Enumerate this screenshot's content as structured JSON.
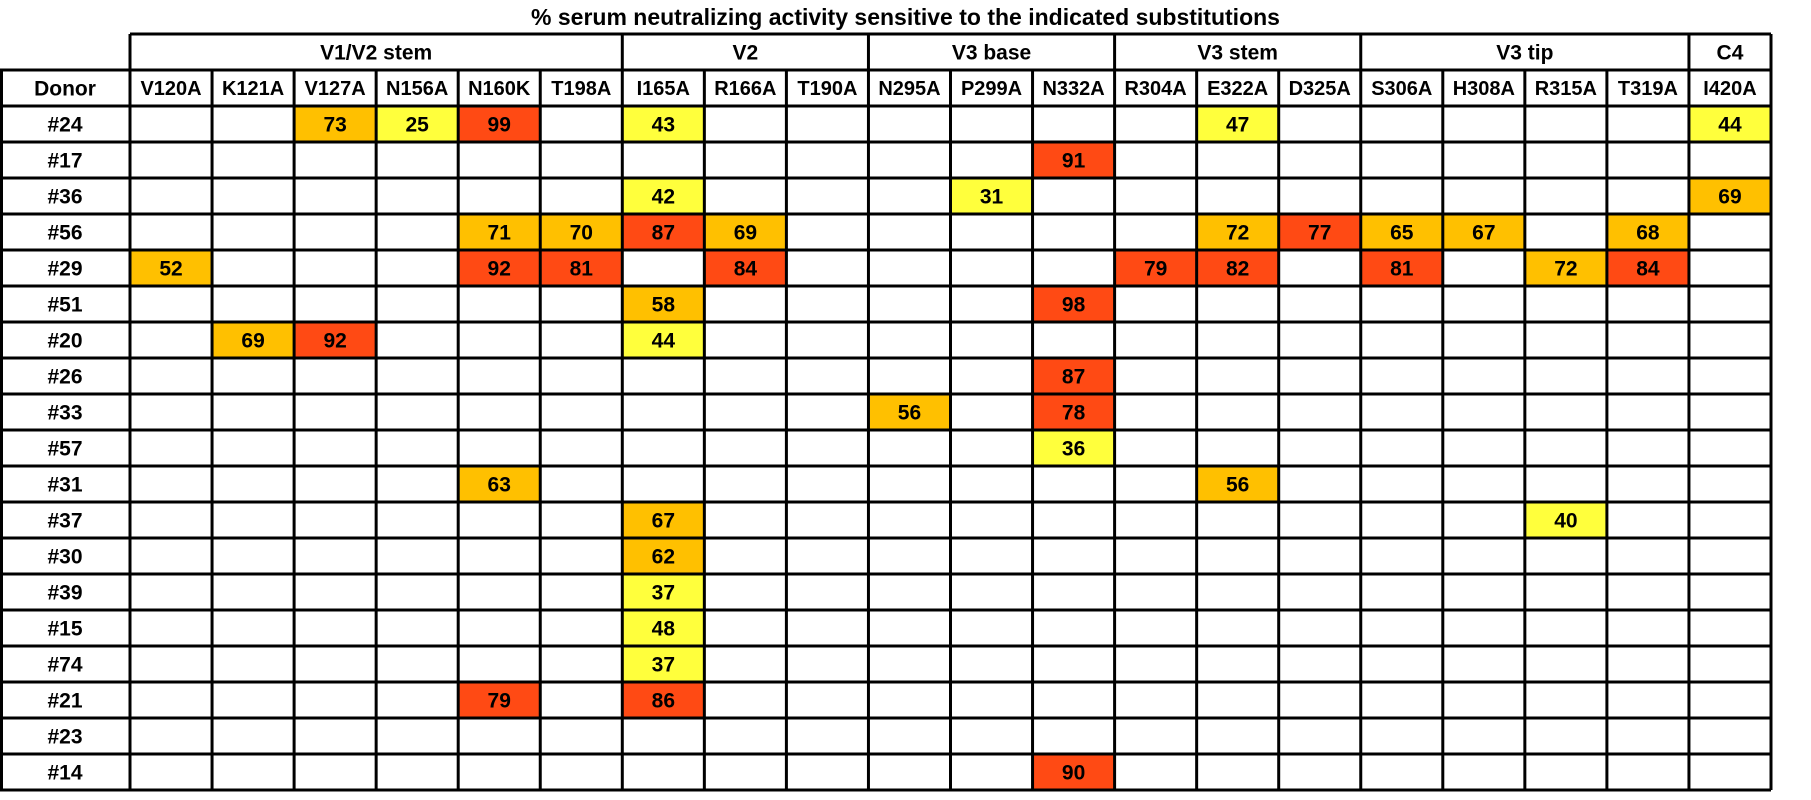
{
  "chart_data": {
    "type": "heatmap",
    "title": "% serum neutralizing activity sensitive to the indicated substitutions",
    "row_header": "Donor",
    "groups": [
      {
        "label": "V1/V2 stem",
        "span": 6
      },
      {
        "label": "V2",
        "span": 3
      },
      {
        "label": "V3 base",
        "span": 3
      },
      {
        "label": "V3 stem",
        "span": 3
      },
      {
        "label": "V3 tip",
        "span": 4
      },
      {
        "label": "C4",
        "span": 1
      }
    ],
    "columns": [
      "V120A",
      "K121A",
      "V127A",
      "N156A",
      "N160K",
      "T198A",
      "I165A",
      "R166A",
      "T190A",
      "N295A",
      "P299A",
      "N332A",
      "R304A",
      "E322A",
      "D325A",
      "S306A",
      "H308A",
      "R315A",
      "T319A",
      "I420A"
    ],
    "rows": [
      "#24",
      "#17",
      "#36",
      "#56",
      "#29",
      "#51",
      "#20",
      "#26",
      "#33",
      "#57",
      "#31",
      "#37",
      "#30",
      "#39",
      "#15",
      "#74",
      "#21",
      "#23",
      "#14"
    ],
    "values": [
      [
        null,
        null,
        73,
        25,
        99,
        null,
        43,
        null,
        null,
        null,
        null,
        null,
        null,
        47,
        null,
        null,
        null,
        null,
        null,
        44
      ],
      [
        null,
        null,
        null,
        null,
        null,
        null,
        null,
        null,
        null,
        null,
        null,
        91,
        null,
        null,
        null,
        null,
        null,
        null,
        null,
        null
      ],
      [
        null,
        null,
        null,
        null,
        null,
        null,
        42,
        null,
        null,
        null,
        31,
        null,
        null,
        null,
        null,
        null,
        null,
        null,
        null,
        69
      ],
      [
        null,
        null,
        null,
        null,
        71,
        70,
        87,
        69,
        null,
        null,
        null,
        null,
        null,
        72,
        77,
        65,
        67,
        null,
        68,
        null
      ],
      [
        52,
        null,
        null,
        null,
        92,
        81,
        null,
        84,
        null,
        null,
        null,
        null,
        79,
        82,
        null,
        81,
        null,
        72,
        84,
        null
      ],
      [
        null,
        null,
        null,
        null,
        null,
        null,
        58,
        null,
        null,
        null,
        null,
        98,
        null,
        null,
        null,
        null,
        null,
        null,
        null,
        null
      ],
      [
        null,
        69,
        92,
        null,
        null,
        null,
        44,
        null,
        null,
        null,
        null,
        null,
        null,
        null,
        null,
        null,
        null,
        null,
        null,
        null
      ],
      [
        null,
        null,
        null,
        null,
        null,
        null,
        null,
        null,
        null,
        null,
        null,
        87,
        null,
        null,
        null,
        null,
        null,
        null,
        null,
        null
      ],
      [
        null,
        null,
        null,
        null,
        null,
        null,
        null,
        null,
        null,
        56,
        null,
        78,
        null,
        null,
        null,
        null,
        null,
        null,
        null,
        null
      ],
      [
        null,
        null,
        null,
        null,
        null,
        null,
        null,
        null,
        null,
        null,
        null,
        36,
        null,
        null,
        null,
        null,
        null,
        null,
        null,
        null
      ],
      [
        null,
        null,
        null,
        null,
        63,
        null,
        null,
        null,
        null,
        null,
        null,
        null,
        null,
        56,
        null,
        null,
        null,
        null,
        null,
        null
      ],
      [
        null,
        null,
        null,
        null,
        null,
        null,
        67,
        null,
        null,
        null,
        null,
        null,
        null,
        null,
        null,
        null,
        null,
        40,
        null,
        null
      ],
      [
        null,
        null,
        null,
        null,
        null,
        null,
        62,
        null,
        null,
        null,
        null,
        null,
        null,
        null,
        null,
        null,
        null,
        null,
        null,
        null
      ],
      [
        null,
        null,
        null,
        null,
        null,
        null,
        37,
        null,
        null,
        null,
        null,
        null,
        null,
        null,
        null,
        null,
        null,
        null,
        null,
        null
      ],
      [
        null,
        null,
        null,
        null,
        null,
        null,
        48,
        null,
        null,
        null,
        null,
        null,
        null,
        null,
        null,
        null,
        null,
        null,
        null,
        null
      ],
      [
        null,
        null,
        null,
        null,
        null,
        null,
        37,
        null,
        null,
        null,
        null,
        null,
        null,
        null,
        null,
        null,
        null,
        null,
        null,
        null
      ],
      [
        null,
        null,
        null,
        null,
        79,
        null,
        86,
        null,
        null,
        null,
        null,
        null,
        null,
        null,
        null,
        null,
        null,
        null,
        null,
        null
      ],
      [
        null,
        null,
        null,
        null,
        null,
        null,
        null,
        null,
        null,
        null,
        null,
        null,
        null,
        null,
        null,
        null,
        null,
        null,
        null,
        null
      ],
      [
        null,
        null,
        null,
        null,
        null,
        null,
        null,
        null,
        null,
        null,
        null,
        90,
        null,
        null,
        null,
        null,
        null,
        null,
        null,
        null
      ]
    ],
    "color_scale": [
      {
        "min": 0,
        "max": 49,
        "color": "#ffff3c"
      },
      {
        "min": 50,
        "max": 74,
        "color": "#ffc000"
      },
      {
        "min": 75,
        "max": 100,
        "color": "#ff4a14"
      }
    ],
    "grid": true,
    "legend": "none"
  }
}
